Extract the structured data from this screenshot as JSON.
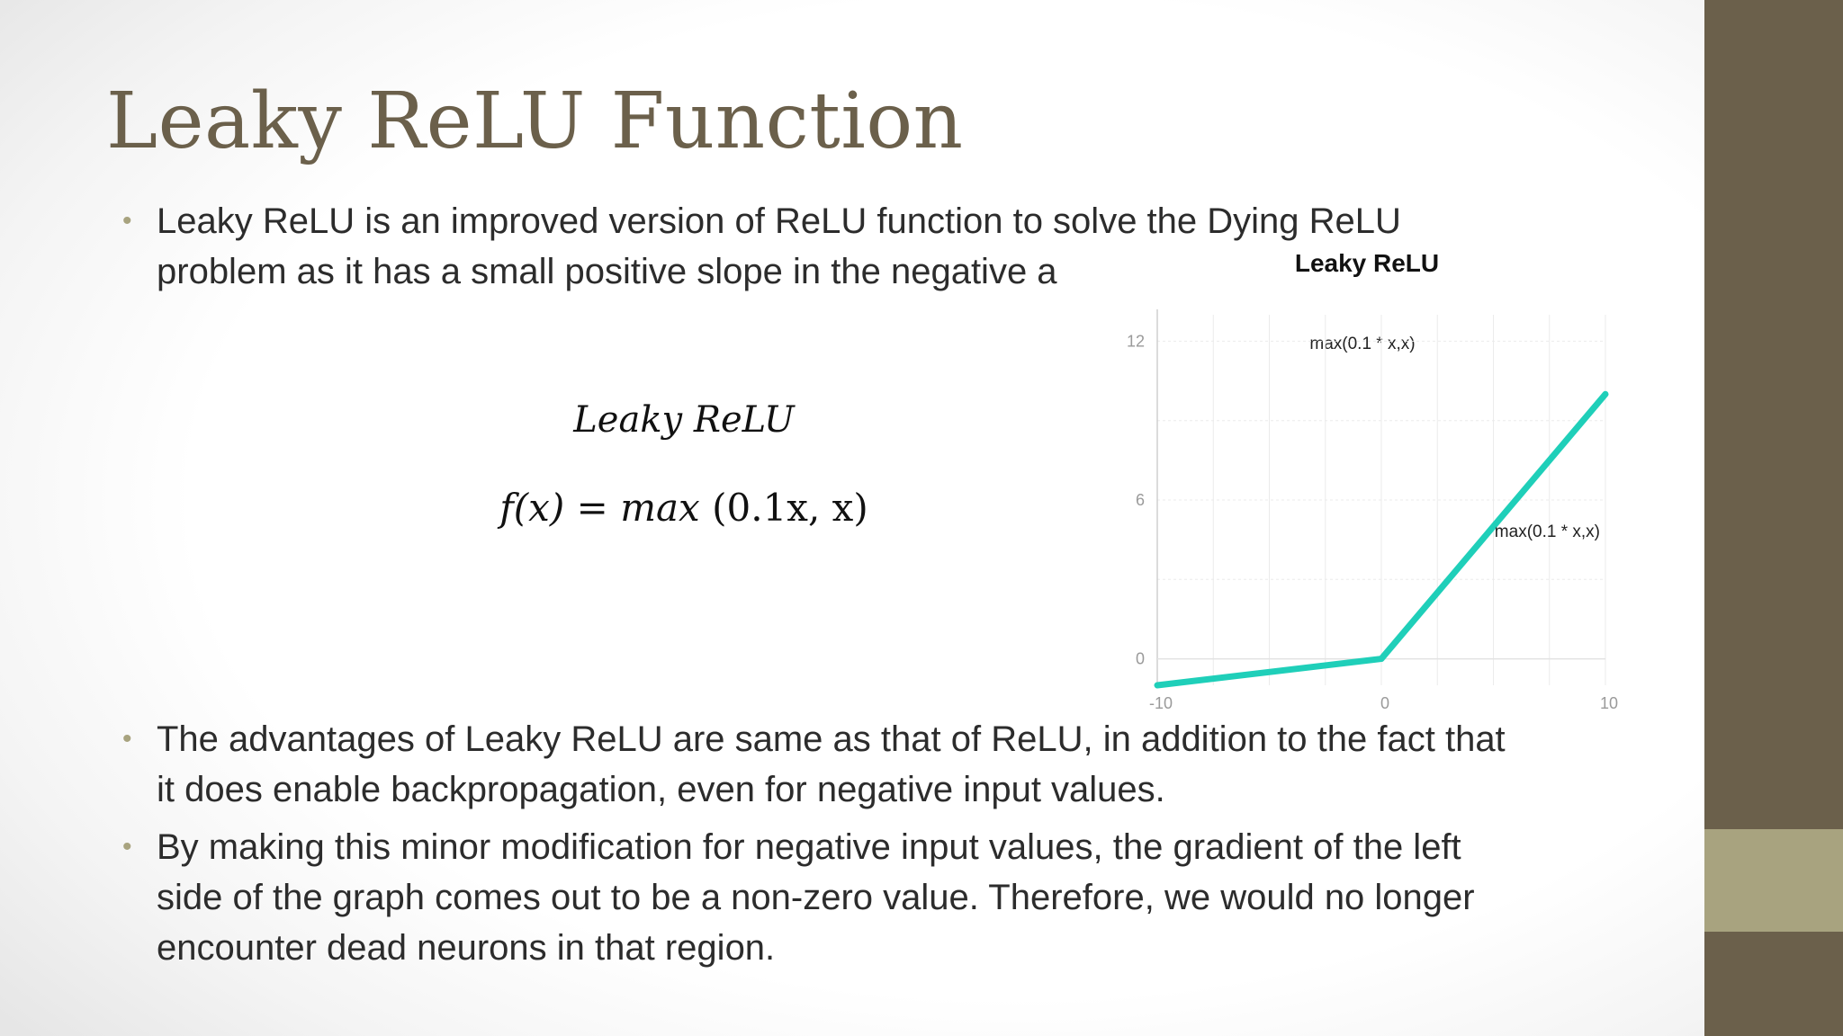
{
  "slide": {
    "title": "Leaky ReLU Function",
    "bullets": [
      {
        "lines": [
          "Leaky ReLU is an improved version of ReLU function to solve the Dying ReLU",
          "problem as it has a small positive slope in the negative a"
        ]
      },
      {
        "lines": [
          "The advantages of Leaky ReLU are same as that of ReLU, in addition to the fact that",
          "it does enable backpropagation, even for negative input values."
        ]
      },
      {
        "lines": [
          "By making this minor modification for negative input values, the gradient of the left",
          "side of the graph comes out to be a non-zero value. Therefore, we would no longer",
          "encounter dead neurons in that region."
        ]
      }
    ],
    "formula": {
      "title": "Leaky ReLU",
      "lhs": "f(x)",
      "equals": "=",
      "fn": "max",
      "args": "(0.1x, x)"
    }
  },
  "colors": {
    "title": "#6b604b",
    "text": "#2c2c2c",
    "bullet": "#a8a37f",
    "side_band": "#6b604b",
    "side_accent": "#a8a37f",
    "line": "#1fcfb9",
    "grid": "#ebebeb",
    "tick": "#9a9a9a"
  },
  "chart_data": {
    "type": "line",
    "title": "Leaky ReLU",
    "subtitle": "max(0.1 * x,x)",
    "series": [
      {
        "name": "max(0.1 * x,x)",
        "x": [
          -10,
          0,
          10
        ],
        "y": [
          -1,
          0,
          10
        ]
      }
    ],
    "xticks": [
      -10,
      0,
      10
    ],
    "yticks": [
      0,
      6,
      12
    ],
    "xlim": [
      -10,
      10
    ],
    "ylim": [
      -1,
      13
    ],
    "grid": true,
    "xlabel": "",
    "ylabel": "",
    "series_label_position": "right"
  }
}
